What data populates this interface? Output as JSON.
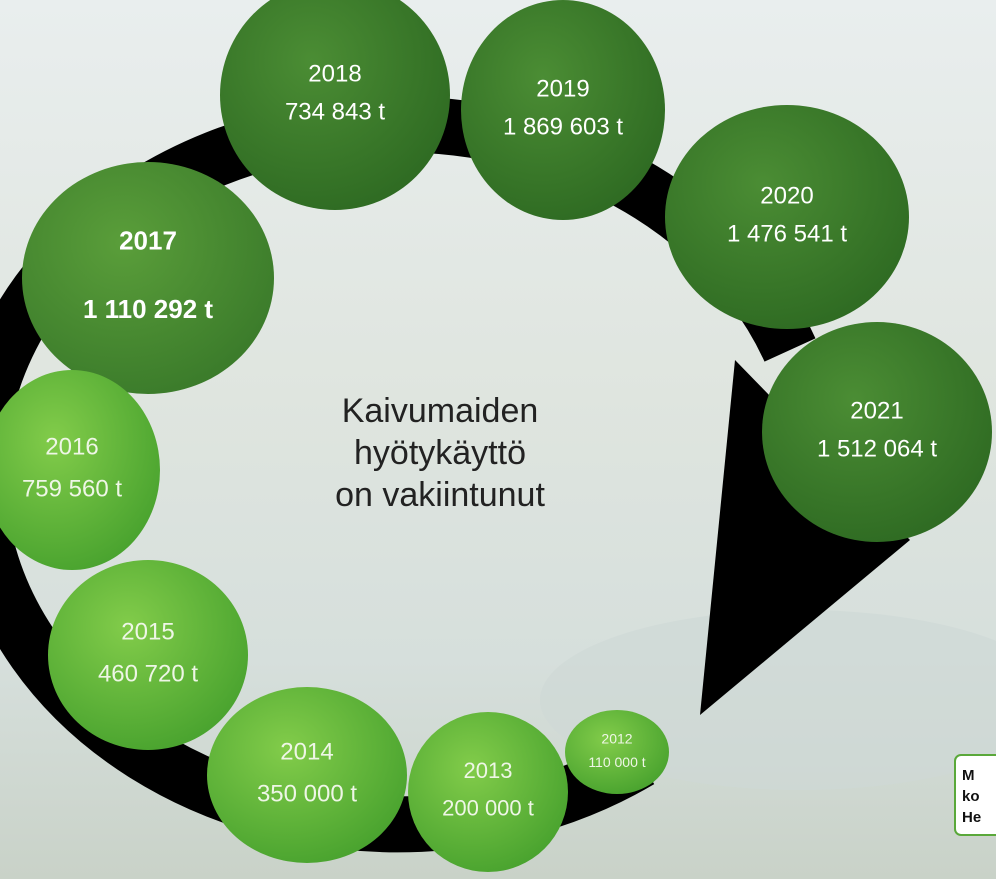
{
  "center_text": [
    "Kaivumaiden",
    "hyötykäyttö",
    "on vakiintunut"
  ],
  "circles": [
    {
      "year": "2018",
      "amount": "734 843 t"
    },
    {
      "year": "2019",
      "amount": "1 869 603 t"
    },
    {
      "year": "2020",
      "amount": "1 476 541 t"
    },
    {
      "year": "2021",
      "amount": "1 512 064 t"
    },
    {
      "year": "2017",
      "amount": "1 110 292 t"
    },
    {
      "year": "2016",
      "amount": "759 560 t"
    },
    {
      "year": "2015",
      "amount": "460 720 t"
    },
    {
      "year": "2014",
      "amount": "350 000 t"
    },
    {
      "year": "2013",
      "amount": "200 000 t"
    },
    {
      "year": "2012",
      "amount": "110 000 t"
    }
  ],
  "note": {
    "lines": [
      "M",
      "ko",
      "He"
    ]
  }
}
